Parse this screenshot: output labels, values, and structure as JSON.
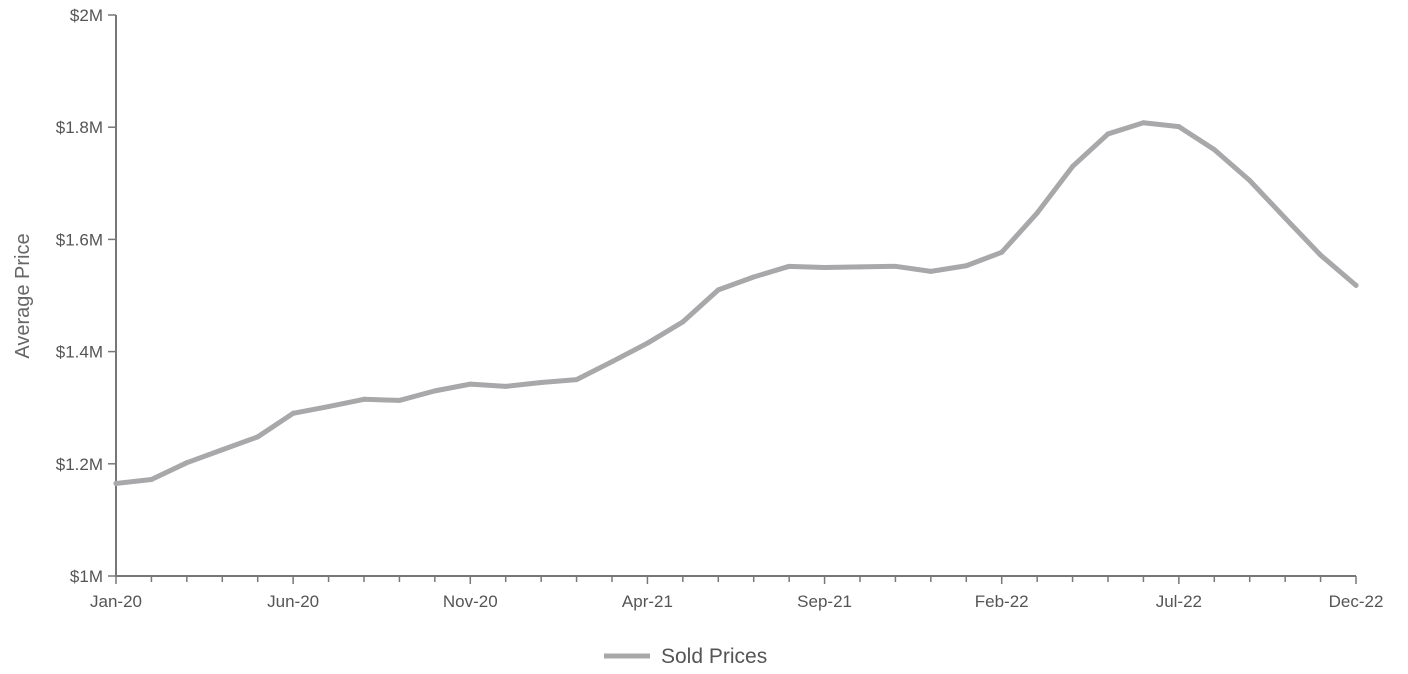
{
  "chart_data": {
    "type": "line",
    "title": "",
    "xlabel": "",
    "ylabel": "Average Price",
    "ylim": [
      1000000,
      2000000
    ],
    "grid": false,
    "legend_position": "bottom-center",
    "y_ticks": [
      {
        "value": 1000000,
        "label": "$1M"
      },
      {
        "value": 1200000,
        "label": "$1.2M"
      },
      {
        "value": 1400000,
        "label": "$1.4M"
      },
      {
        "value": 1600000,
        "label": "$1.6M"
      },
      {
        "value": 1800000,
        "label": "$1.8M"
      },
      {
        "value": 2000000,
        "label": "$2M"
      }
    ],
    "x_tick_labels": [
      "Jan-20",
      "Jun-20",
      "Nov-20",
      "Apr-21",
      "Sep-21",
      "Feb-22",
      "Jul-22",
      "Dec-22"
    ],
    "x": [
      "Jan-20",
      "Feb-20",
      "Mar-20",
      "Apr-20",
      "May-20",
      "Jun-20",
      "Jul-20",
      "Aug-20",
      "Sep-20",
      "Oct-20",
      "Nov-20",
      "Dec-20",
      "Jan-21",
      "Feb-21",
      "Mar-21",
      "Apr-21",
      "May-21",
      "Jun-21",
      "Jul-21",
      "Aug-21",
      "Sep-21",
      "Oct-21",
      "Nov-21",
      "Dec-21",
      "Jan-22",
      "Feb-22",
      "Mar-22",
      "Apr-22",
      "May-22",
      "Jun-22",
      "Jul-22",
      "Aug-22",
      "Sep-22",
      "Oct-22",
      "Nov-22",
      "Dec-22"
    ],
    "series": [
      {
        "name": "Sold Prices",
        "color": "#a8a8aa",
        "values": [
          1165000,
          1172000,
          1202000,
          1225000,
          1248000,
          1290000,
          1302000,
          1315000,
          1313000,
          1330000,
          1342000,
          1338000,
          1345000,
          1350000,
          1382000,
          1415000,
          1453000,
          1510000,
          1533000,
          1552000,
          1550000,
          1551000,
          1552000,
          1543000,
          1553000,
          1577000,
          1647000,
          1730000,
          1788000,
          1808000,
          1801000,
          1760000,
          1705000,
          1638000,
          1572000,
          1518000
        ]
      }
    ]
  }
}
